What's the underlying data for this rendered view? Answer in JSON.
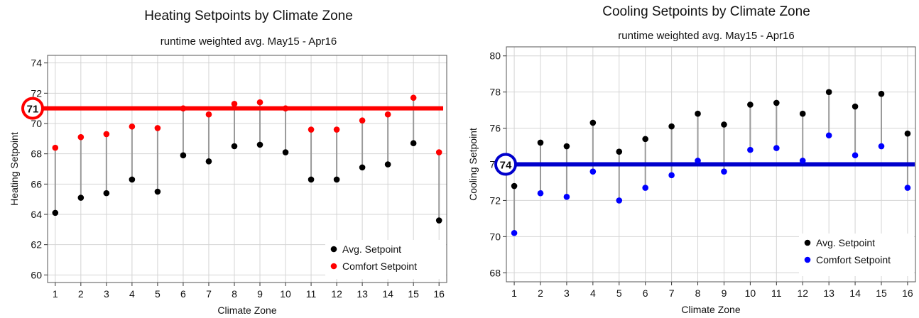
{
  "chart_data": [
    {
      "type": "scatter",
      "title": "Heating Setpoints by Climate Zone",
      "subtitle": "runtime weighted avg. May15 - Apr16",
      "xlabel": "Climate Zone",
      "ylabel": "Heating Setpoint",
      "x": [
        1,
        2,
        3,
        4,
        5,
        6,
        7,
        8,
        9,
        10,
        11,
        12,
        13,
        14,
        15,
        16
      ],
      "xlim": [
        0.7,
        16.3
      ],
      "ylim": [
        59.5,
        74.5
      ],
      "yticks": [
        60,
        62,
        64,
        66,
        68,
        70,
        72,
        74
      ],
      "grid": true,
      "legend_position": "bottom-right",
      "series": [
        {
          "name": "Avg. Setpoint",
          "color": "#000000",
          "values": [
            64.1,
            65.1,
            65.4,
            66.3,
            65.5,
            67.9,
            67.5,
            68.5,
            68.6,
            68.1,
            66.3,
            66.3,
            67.1,
            67.3,
            68.7,
            63.6
          ]
        },
        {
          "name": "Comfort Setpoint",
          "color": "#ff0000",
          "values": [
            68.4,
            69.1,
            69.3,
            69.8,
            69.7,
            71.0,
            70.6,
            71.3,
            71.4,
            71.0,
            69.6,
            69.6,
            70.2,
            70.6,
            71.7,
            68.1
          ]
        }
      ],
      "reference_line": {
        "value": 71,
        "label": "71",
        "color": "#ff0000"
      }
    },
    {
      "type": "scatter",
      "title": "Cooling Setpoints by Climate Zone",
      "subtitle": "runtime weighted avg. May15 - Apr16",
      "xlabel": "Climate Zone",
      "ylabel": "Cooling Setpoint",
      "x": [
        1,
        2,
        3,
        4,
        5,
        6,
        7,
        8,
        9,
        10,
        11,
        12,
        13,
        14,
        15,
        16
      ],
      "xlim": [
        0.7,
        16.3
      ],
      "ylim": [
        67.5,
        80.5
      ],
      "yticks": [
        68,
        70,
        72,
        74,
        76,
        78,
        80
      ],
      "grid": true,
      "legend_position": "bottom-right",
      "series": [
        {
          "name": "Avg. Setpoint",
          "color": "#000000",
          "values": [
            72.8,
            75.2,
            75.0,
            76.3,
            74.7,
            75.4,
            76.1,
            76.8,
            76.2,
            77.3,
            77.4,
            76.8,
            78.0,
            77.2,
            77.9,
            75.7
          ]
        },
        {
          "name": "Comfort Setpoint",
          "color": "#0000ff",
          "values": [
            70.2,
            72.4,
            72.2,
            73.6,
            72.0,
            72.7,
            73.4,
            74.2,
            73.6,
            74.8,
            74.9,
            74.2,
            75.6,
            74.5,
            75.0,
            72.7
          ]
        }
      ],
      "reference_line": {
        "value": 74,
        "label": "74",
        "color": "#0000cc"
      }
    }
  ]
}
